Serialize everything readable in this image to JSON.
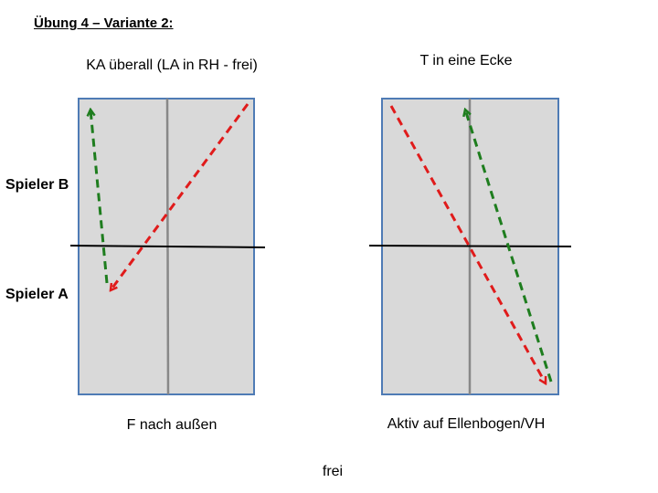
{
  "title": "Übung 4 – Variante 2:",
  "players": [
    "Spieler B",
    "Spieler A"
  ],
  "tables": [
    {
      "heading": "KA überall (LA in RH - frei)",
      "caption": "F nach außen"
    },
    {
      "heading": "T in eine Ecke",
      "caption": "Aktiv auf Ellenbogen/VH"
    }
  ],
  "footer": "frei"
}
